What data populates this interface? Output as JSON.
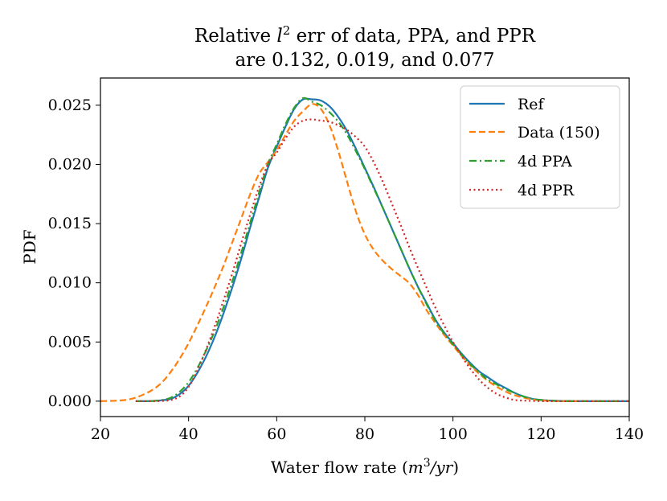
{
  "chart_data": {
    "type": "line",
    "title_line1_prefix": "Relative ",
    "title_line1_var": "l",
    "title_line1_sup": "2",
    "title_line1_suffix": " err of data, PPA, and PPR",
    "title_line2": "are 0.132, 0.019, and 0.077",
    "xlabel_prefix": "Water flow rate (",
    "xlabel_var": "m",
    "xlabel_sup": "3",
    "xlabel_suffix_var": "/yr",
    "xlabel_close": ")",
    "ylabel": "PDF",
    "xlim": [
      20,
      140
    ],
    "ylim": [
      -0.0013,
      0.0273
    ],
    "xticks": [
      20,
      40,
      60,
      80,
      100,
      120,
      140
    ],
    "yticks": [
      0.0,
      0.005,
      0.01,
      0.015,
      0.02,
      0.025
    ],
    "ytick_labels": [
      "0.000",
      "0.005",
      "0.010",
      "0.015",
      "0.020",
      "0.025"
    ],
    "legend_position": "top-right",
    "series": [
      {
        "name": "Ref",
        "color": "#1f77b4",
        "dash": "solid",
        "x": [
          28,
          30,
          32,
          34,
          36,
          38,
          40,
          42,
          44,
          46,
          48,
          50,
          52,
          54,
          56,
          58,
          60,
          62,
          64,
          66,
          68,
          70,
          72,
          74,
          76,
          78,
          80,
          82,
          84,
          86,
          88,
          90,
          92,
          94,
          96,
          98,
          100,
          102,
          104,
          106,
          108,
          110,
          112,
          114,
          116,
          118,
          120,
          122,
          124,
          126,
          128,
          130,
          132,
          134,
          136,
          138,
          140
        ],
        "y": [
          0.0,
          0.0,
          2e-05,
          8e-05,
          0.0002,
          0.0006,
          0.0013,
          0.0024,
          0.0038,
          0.0055,
          0.0075,
          0.0097,
          0.0121,
          0.0147,
          0.0172,
          0.0197,
          0.0215,
          0.0232,
          0.0247,
          0.0255,
          0.0255,
          0.0254,
          0.0249,
          0.024,
          0.0228,
          0.0213,
          0.0197,
          0.0181,
          0.0164,
          0.0147,
          0.013,
          0.0113,
          0.0097,
          0.0083,
          0.0069,
          0.0058,
          0.0049,
          0.004,
          0.0032,
          0.0025,
          0.002,
          0.0015,
          0.0011,
          0.0007,
          0.0004,
          0.0002,
          0.0001,
          5e-05,
          2e-05,
          1e-05,
          0.0,
          0.0,
          0.0,
          0.0,
          0.0,
          0.0,
          0.0
        ]
      },
      {
        "name": "Data (150)",
        "color": "#ff7f0e",
        "dash": "dashed",
        "x": [
          20,
          22,
          24,
          26,
          28,
          30,
          32,
          34,
          36,
          38,
          40,
          42,
          44,
          46,
          48,
          50,
          52,
          54,
          56,
          58,
          60,
          62,
          64,
          66,
          68,
          70,
          72,
          74,
          76,
          78,
          80,
          82,
          84,
          86,
          88,
          90,
          92,
          94,
          96,
          98,
          100,
          102,
          104,
          106,
          108,
          110,
          112,
          114,
          116,
          118,
          120,
          122,
          124,
          126,
          128,
          130,
          132
        ],
        "y": [
          0.0,
          2e-05,
          5e-05,
          0.00012,
          0.0003,
          0.0006,
          0.001,
          0.0016,
          0.0025,
          0.0036,
          0.0049,
          0.0064,
          0.008,
          0.0097,
          0.0115,
          0.0135,
          0.0155,
          0.0175,
          0.0192,
          0.0202,
          0.0212,
          0.0225,
          0.0237,
          0.0245,
          0.0251,
          0.0247,
          0.0233,
          0.0211,
          0.0185,
          0.016,
          0.0141,
          0.0128,
          0.0119,
          0.0112,
          0.0106,
          0.01,
          0.009,
          0.0077,
          0.0066,
          0.0056,
          0.0047,
          0.0038,
          0.003,
          0.0023,
          0.0017,
          0.0012,
          0.0008,
          0.0005,
          0.0003,
          0.00015,
          7e-05,
          3e-05,
          1e-05,
          0.0,
          0.0,
          0.0,
          0.0
        ]
      },
      {
        "name": "4d PPA",
        "color": "#2ca02c",
        "dash": "dashdot",
        "x": [
          28,
          30,
          32,
          34,
          36,
          38,
          40,
          42,
          44,
          46,
          48,
          50,
          52,
          54,
          56,
          58,
          60,
          62,
          64,
          66,
          68,
          70,
          72,
          74,
          76,
          78,
          80,
          82,
          84,
          86,
          88,
          90,
          92,
          94,
          96,
          98,
          100,
          102,
          104,
          106,
          108,
          110,
          112,
          114,
          116,
          118,
          120,
          122,
          124,
          126,
          128,
          130,
          132,
          134,
          136,
          138,
          140
        ],
        "y": [
          0.0,
          0.0,
          2e-05,
          0.0001,
          0.0003,
          0.0008,
          0.0016,
          0.0028,
          0.0043,
          0.006,
          0.008,
          0.0102,
          0.0126,
          0.0151,
          0.0176,
          0.02,
          0.0217,
          0.0234,
          0.0248,
          0.0256,
          0.0253,
          0.025,
          0.0244,
          0.0236,
          0.0225,
          0.0211,
          0.0196,
          0.018,
          0.0164,
          0.0147,
          0.013,
          0.0113,
          0.0097,
          0.0082,
          0.0068,
          0.0057,
          0.0048,
          0.0039,
          0.0031,
          0.0024,
          0.0018,
          0.0014,
          0.001,
          0.0007,
          0.0004,
          0.0002,
          0.0001,
          5e-05,
          2e-05,
          1e-05,
          0.0,
          0.0,
          0.0,
          0.0,
          0.0,
          0.0,
          0.0
        ]
      },
      {
        "name": "4d PPR",
        "color": "#d62728",
        "dash": "dotted",
        "x": [
          28,
          30,
          32,
          34,
          36,
          38,
          40,
          42,
          44,
          46,
          48,
          50,
          52,
          54,
          56,
          58,
          60,
          62,
          64,
          66,
          68,
          70,
          72,
          74,
          76,
          78,
          80,
          82,
          84,
          86,
          88,
          90,
          92,
          94,
          96,
          98,
          100,
          102,
          104,
          106,
          108,
          110,
          112,
          114,
          116,
          118,
          120,
          122,
          124,
          126,
          128,
          130,
          132,
          134,
          136,
          138,
          140
        ],
        "y": [
          0.0,
          0.0,
          0.0,
          2e-05,
          0.0001,
          0.0004,
          0.0012,
          0.0026,
          0.0044,
          0.0064,
          0.0086,
          0.0109,
          0.0134,
          0.0158,
          0.0181,
          0.02,
          0.021,
          0.0222,
          0.0232,
          0.0237,
          0.0238,
          0.0237,
          0.0236,
          0.0233,
          0.0229,
          0.0223,
          0.0215,
          0.0202,
          0.0186,
          0.0168,
          0.015,
          0.0131,
          0.0113,
          0.0096,
          0.0079,
          0.0064,
          0.005,
          0.0038,
          0.0027,
          0.0018,
          0.0011,
          0.0006,
          0.0003,
          0.0001,
          5e-05,
          2e-05,
          0.0,
          0.0,
          0.0,
          0.0,
          0.0,
          0.0,
          0.0,
          0.0,
          0.0,
          0.0,
          0.0
        ]
      }
    ]
  }
}
